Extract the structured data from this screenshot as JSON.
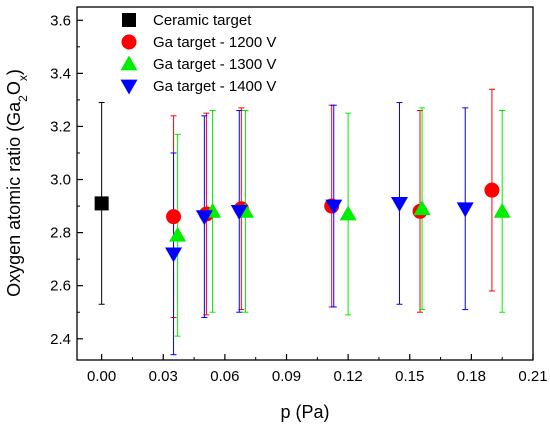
{
  "chart_data": {
    "type": "scatter",
    "xlabel": "p (Pa)",
    "ylabel_main": "Oxygen atomic ratio (Ga",
    "ylabel_sub1": "2",
    "ylabel_mid": "O",
    "ylabel_sub2": "x",
    "ylabel_end": ")",
    "xlim": [
      -0.012,
      0.21
    ],
    "ylim": [
      2.32,
      3.65
    ],
    "x_ticks": [
      0.0,
      0.03,
      0.06,
      0.09,
      0.12,
      0.15,
      0.18,
      0.21
    ],
    "x_tick_labels": [
      "0.00",
      "0.03",
      "0.06",
      "0.09",
      "0.12",
      "0.15",
      "0.18",
      "0.21"
    ],
    "y_ticks": [
      2.4,
      2.6,
      2.8,
      3.0,
      3.2,
      3.4,
      3.6
    ],
    "y_tick_labels": [
      "2.4",
      "2.6",
      "2.8",
      "3.0",
      "3.2",
      "3.4",
      "3.6"
    ],
    "legend_position": "top-left",
    "series": [
      {
        "name": "Ceramic target",
        "marker": "square",
        "color": "#000000",
        "points": [
          {
            "x": 0.0,
            "y": 2.91,
            "ylo": 2.53,
            "yhi": 3.29
          }
        ]
      },
      {
        "name": "Ga target - 1200 V",
        "marker": "circle",
        "color": "#ff0000",
        "points": [
          {
            "x": 0.035,
            "y": 2.86,
            "ylo": 2.48,
            "yhi": 3.24
          },
          {
            "x": 0.051,
            "y": 2.87,
            "ylo": 2.49,
            "yhi": 3.25
          },
          {
            "x": 0.068,
            "y": 2.89,
            "ylo": 2.51,
            "yhi": 3.27
          },
          {
            "x": 0.112,
            "y": 2.9,
            "ylo": 2.52,
            "yhi": 3.28
          },
          {
            "x": 0.155,
            "y": 2.88,
            "ylo": 2.5,
            "yhi": 3.26
          },
          {
            "x": 0.19,
            "y": 2.96,
            "ylo": 2.58,
            "yhi": 3.34
          }
        ]
      },
      {
        "name": "Ga target - 1300 V",
        "marker": "triangle-up",
        "color": "#00ee00",
        "points": [
          {
            "x": 0.037,
            "y": 2.79,
            "ylo": 2.41,
            "yhi": 3.17
          },
          {
            "x": 0.054,
            "y": 2.88,
            "ylo": 2.5,
            "yhi": 3.26
          },
          {
            "x": 0.07,
            "y": 2.88,
            "ylo": 2.5,
            "yhi": 3.26
          },
          {
            "x": 0.12,
            "y": 2.87,
            "ylo": 2.49,
            "yhi": 3.25
          },
          {
            "x": 0.156,
            "y": 2.89,
            "ylo": 2.51,
            "yhi": 3.27
          },
          {
            "x": 0.195,
            "y": 2.88,
            "ylo": 2.5,
            "yhi": 3.26
          }
        ]
      },
      {
        "name": "Ga target - 1400 V",
        "marker": "triangle-down",
        "color": "#0000ff",
        "points": [
          {
            "x": 0.035,
            "y": 2.72,
            "ylo": 2.34,
            "yhi": 3.1
          },
          {
            "x": 0.05,
            "y": 2.86,
            "ylo": 2.48,
            "yhi": 3.24
          },
          {
            "x": 0.067,
            "y": 2.88,
            "ylo": 2.5,
            "yhi": 3.26
          },
          {
            "x": 0.113,
            "y": 2.9,
            "ylo": 2.52,
            "yhi": 3.28
          },
          {
            "x": 0.145,
            "y": 2.91,
            "ylo": 2.53,
            "yhi": 3.29
          },
          {
            "x": 0.177,
            "y": 2.89,
            "ylo": 2.51,
            "yhi": 3.27
          }
        ]
      }
    ]
  }
}
